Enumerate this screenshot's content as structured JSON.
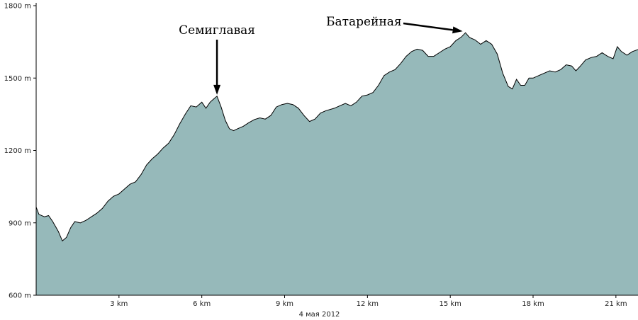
{
  "chart_data": {
    "type": "area",
    "xlabel": "4 мая 2012",
    "x_unit": "km",
    "y_unit": "m",
    "xlim": [
      0,
      21.8
    ],
    "ylim": [
      600,
      1800
    ],
    "x_ticks": [
      {
        "value": 3,
        "label": "3 km"
      },
      {
        "value": 6,
        "label": "6 km"
      },
      {
        "value": 9,
        "label": "9 km"
      },
      {
        "value": 12,
        "label": "12 km"
      },
      {
        "value": 15,
        "label": "15 km"
      },
      {
        "value": 18,
        "label": "18 km"
      },
      {
        "value": 21,
        "label": "21 km"
      }
    ],
    "y_ticks": [
      {
        "value": 600,
        "label": "600 m"
      },
      {
        "value": 900,
        "label": "900 m"
      },
      {
        "value": 1200,
        "label": "1200 m"
      },
      {
        "value": 1500,
        "label": "1500 m"
      },
      {
        "value": 1800,
        "label": "1800 m"
      }
    ],
    "fill_color": "#96b9ba",
    "line_color": "#000000",
    "series": [
      {
        "points": [
          [
            0.0,
            965
          ],
          [
            0.1,
            935
          ],
          [
            0.3,
            925
          ],
          [
            0.45,
            930
          ],
          [
            0.6,
            905
          ],
          [
            0.8,
            865
          ],
          [
            0.95,
            825
          ],
          [
            1.1,
            840
          ],
          [
            1.25,
            880
          ],
          [
            1.4,
            905
          ],
          [
            1.6,
            900
          ],
          [
            1.8,
            910
          ],
          [
            2.0,
            925
          ],
          [
            2.2,
            940
          ],
          [
            2.4,
            960
          ],
          [
            2.6,
            990
          ],
          [
            2.8,
            1010
          ],
          [
            3.0,
            1020
          ],
          [
            3.2,
            1040
          ],
          [
            3.4,
            1060
          ],
          [
            3.6,
            1070
          ],
          [
            3.8,
            1100
          ],
          [
            4.0,
            1140
          ],
          [
            4.2,
            1165
          ],
          [
            4.4,
            1185
          ],
          [
            4.6,
            1210
          ],
          [
            4.8,
            1230
          ],
          [
            5.0,
            1265
          ],
          [
            5.2,
            1310
          ],
          [
            5.4,
            1350
          ],
          [
            5.6,
            1385
          ],
          [
            5.8,
            1380
          ],
          [
            6.0,
            1400
          ],
          [
            6.15,
            1375
          ],
          [
            6.3,
            1400
          ],
          [
            6.4,
            1410
          ],
          [
            6.55,
            1425
          ],
          [
            6.7,
            1380
          ],
          [
            6.85,
            1325
          ],
          [
            7.0,
            1290
          ],
          [
            7.15,
            1282
          ],
          [
            7.3,
            1290
          ],
          [
            7.5,
            1300
          ],
          [
            7.7,
            1315
          ],
          [
            7.9,
            1328
          ],
          [
            8.1,
            1335
          ],
          [
            8.3,
            1330
          ],
          [
            8.5,
            1345
          ],
          [
            8.7,
            1380
          ],
          [
            8.9,
            1390
          ],
          [
            9.1,
            1395
          ],
          [
            9.3,
            1390
          ],
          [
            9.5,
            1375
          ],
          [
            9.7,
            1345
          ],
          [
            9.9,
            1320
          ],
          [
            10.1,
            1330
          ],
          [
            10.3,
            1355
          ],
          [
            10.5,
            1365
          ],
          [
            10.8,
            1375
          ],
          [
            11.0,
            1385
          ],
          [
            11.2,
            1395
          ],
          [
            11.4,
            1385
          ],
          [
            11.6,
            1400
          ],
          [
            11.8,
            1425
          ],
          [
            12.0,
            1430
          ],
          [
            12.2,
            1440
          ],
          [
            12.4,
            1470
          ],
          [
            12.6,
            1510
          ],
          [
            12.8,
            1525
          ],
          [
            13.0,
            1535
          ],
          [
            13.2,
            1560
          ],
          [
            13.4,
            1590
          ],
          [
            13.6,
            1610
          ],
          [
            13.8,
            1620
          ],
          [
            14.0,
            1615
          ],
          [
            14.2,
            1590
          ],
          [
            14.4,
            1590
          ],
          [
            14.6,
            1605
          ],
          [
            14.8,
            1620
          ],
          [
            15.0,
            1630
          ],
          [
            15.2,
            1655
          ],
          [
            15.4,
            1670
          ],
          [
            15.55,
            1688
          ],
          [
            15.7,
            1668
          ],
          [
            15.9,
            1658
          ],
          [
            16.1,
            1640
          ],
          [
            16.3,
            1655
          ],
          [
            16.5,
            1640
          ],
          [
            16.7,
            1600
          ],
          [
            16.9,
            1520
          ],
          [
            17.1,
            1465
          ],
          [
            17.25,
            1455
          ],
          [
            17.4,
            1495
          ],
          [
            17.55,
            1470
          ],
          [
            17.7,
            1470
          ],
          [
            17.85,
            1500
          ],
          [
            18.0,
            1500
          ],
          [
            18.2,
            1510
          ],
          [
            18.4,
            1520
          ],
          [
            18.6,
            1530
          ],
          [
            18.8,
            1525
          ],
          [
            19.0,
            1535
          ],
          [
            19.2,
            1555
          ],
          [
            19.4,
            1550
          ],
          [
            19.55,
            1530
          ],
          [
            19.7,
            1548
          ],
          [
            19.9,
            1575
          ],
          [
            20.1,
            1585
          ],
          [
            20.3,
            1590
          ],
          [
            20.5,
            1605
          ],
          [
            20.7,
            1590
          ],
          [
            20.9,
            1580
          ],
          [
            21.05,
            1630
          ],
          [
            21.2,
            1610
          ],
          [
            21.4,
            1595
          ],
          [
            21.6,
            1610
          ],
          [
            21.8,
            1618
          ]
        ]
      }
    ],
    "annotations": [
      {
        "text": "Семиглавая",
        "x": 6.55,
        "y": 1425
      },
      {
        "text": "Батарейная",
        "x": 15.55,
        "y": 1688
      }
    ]
  }
}
